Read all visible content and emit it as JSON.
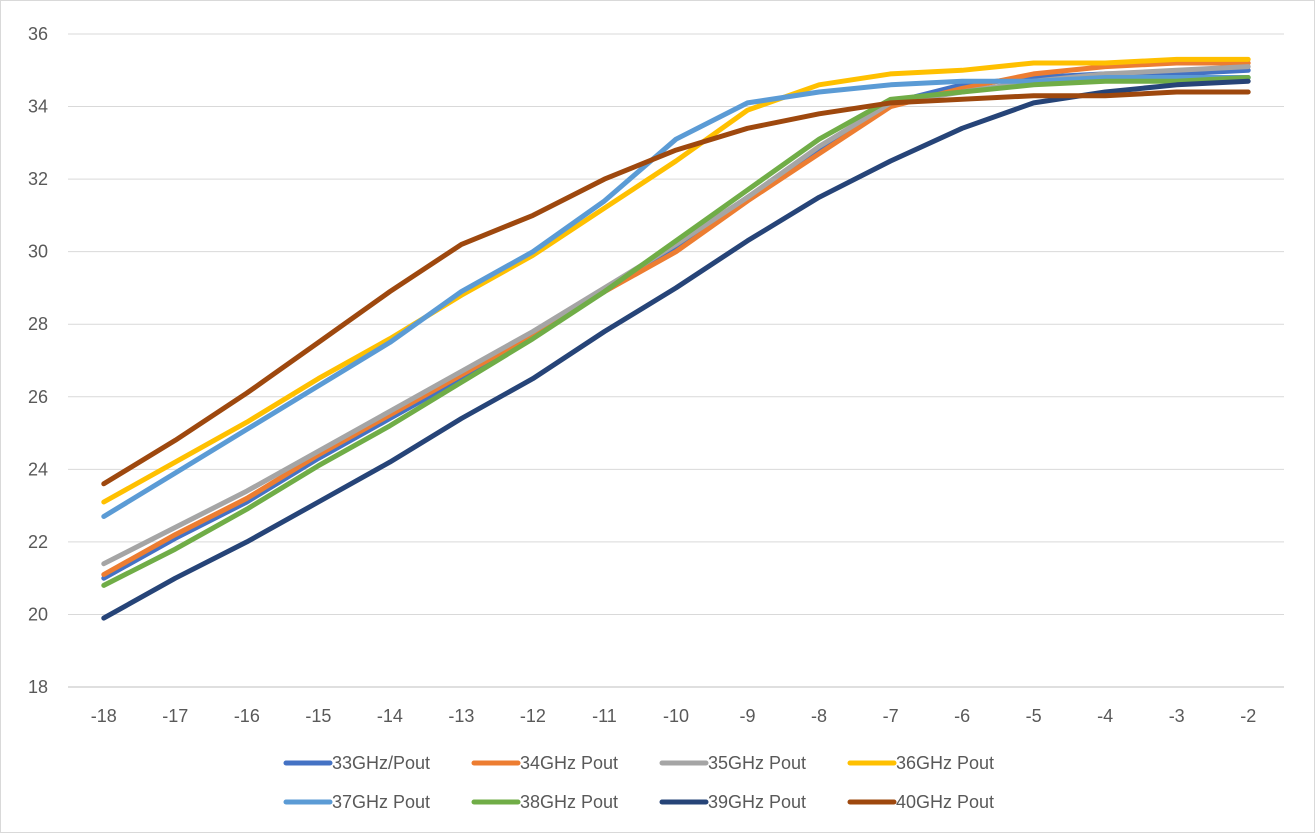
{
  "chart_data": {
    "type": "line",
    "title": "",
    "xlabel": "",
    "ylabel": "",
    "x": [
      -18,
      -17,
      -16,
      -15,
      -14,
      -13,
      -12,
      -11,
      -10,
      -9,
      -8,
      -7,
      -6,
      -5,
      -4,
      -3,
      -2
    ],
    "ylim": [
      18,
      36
    ],
    "yticks": [
      18,
      20,
      22,
      24,
      26,
      28,
      30,
      32,
      34,
      36
    ],
    "grid": true,
    "legend_position": "bottom",
    "series": [
      {
        "name": "33GHz/Pout",
        "color": "#4472C4",
        "values": [
          21.0,
          22.1,
          23.1,
          24.3,
          25.4,
          26.5,
          27.7,
          28.9,
          30.1,
          31.5,
          32.8,
          34.1,
          34.6,
          34.8,
          34.9,
          34.9,
          35.0
        ]
      },
      {
        "name": "34GHz Pout",
        "color": "#ED7D31",
        "values": [
          21.1,
          22.2,
          23.2,
          24.4,
          25.5,
          26.6,
          27.7,
          28.9,
          30.0,
          31.4,
          32.7,
          34.0,
          34.5,
          34.9,
          35.1,
          35.2,
          35.2
        ]
      },
      {
        "name": "35GHz Pout",
        "color": "#A5A5A5",
        "values": [
          21.4,
          22.4,
          23.4,
          24.5,
          25.6,
          26.7,
          27.8,
          29.0,
          30.2,
          31.5,
          32.9,
          34.1,
          34.4,
          34.7,
          34.9,
          35.0,
          35.1
        ]
      },
      {
        "name": "36GHz Pout",
        "color": "#FFC000",
        "values": [
          23.1,
          24.2,
          25.3,
          26.5,
          27.6,
          28.8,
          29.9,
          31.2,
          32.5,
          33.9,
          34.6,
          34.9,
          35.0,
          35.2,
          35.2,
          35.3,
          35.3
        ]
      },
      {
        "name": "37GHz Pout",
        "color": "#5B9BD5",
        "values": [
          22.7,
          23.9,
          25.1,
          26.3,
          27.5,
          28.9,
          30.0,
          31.4,
          33.1,
          34.1,
          34.4,
          34.6,
          34.7,
          34.7,
          34.8,
          34.8,
          34.8
        ]
      },
      {
        "name": "38GHz Pout",
        "color": "#70AD47",
        "values": [
          20.8,
          21.8,
          22.9,
          24.1,
          25.2,
          26.4,
          27.6,
          28.9,
          30.3,
          31.7,
          33.1,
          34.2,
          34.4,
          34.6,
          34.7,
          34.7,
          34.8
        ]
      },
      {
        "name": "39GHz Pout",
        "color": "#264478",
        "values": [
          19.9,
          21.0,
          22.0,
          23.1,
          24.2,
          25.4,
          26.5,
          27.8,
          29.0,
          30.3,
          31.5,
          32.5,
          33.4,
          34.1,
          34.4,
          34.6,
          34.7
        ]
      },
      {
        "name": "40GHz Pout",
        "color": "#9E480E",
        "values": [
          23.6,
          24.8,
          26.1,
          27.5,
          28.9,
          30.2,
          31.0,
          32.0,
          32.8,
          33.4,
          33.8,
          34.1,
          34.2,
          34.3,
          34.3,
          34.4,
          34.4
        ]
      }
    ],
    "legend_rows": [
      [
        "33GHz/Pout",
        "34GHz Pout",
        "35GHz Pout",
        "36GHz Pout"
      ],
      [
        "37GHz Pout",
        "38GHz Pout",
        "39GHz Pout",
        "40GHz Pout"
      ]
    ]
  }
}
